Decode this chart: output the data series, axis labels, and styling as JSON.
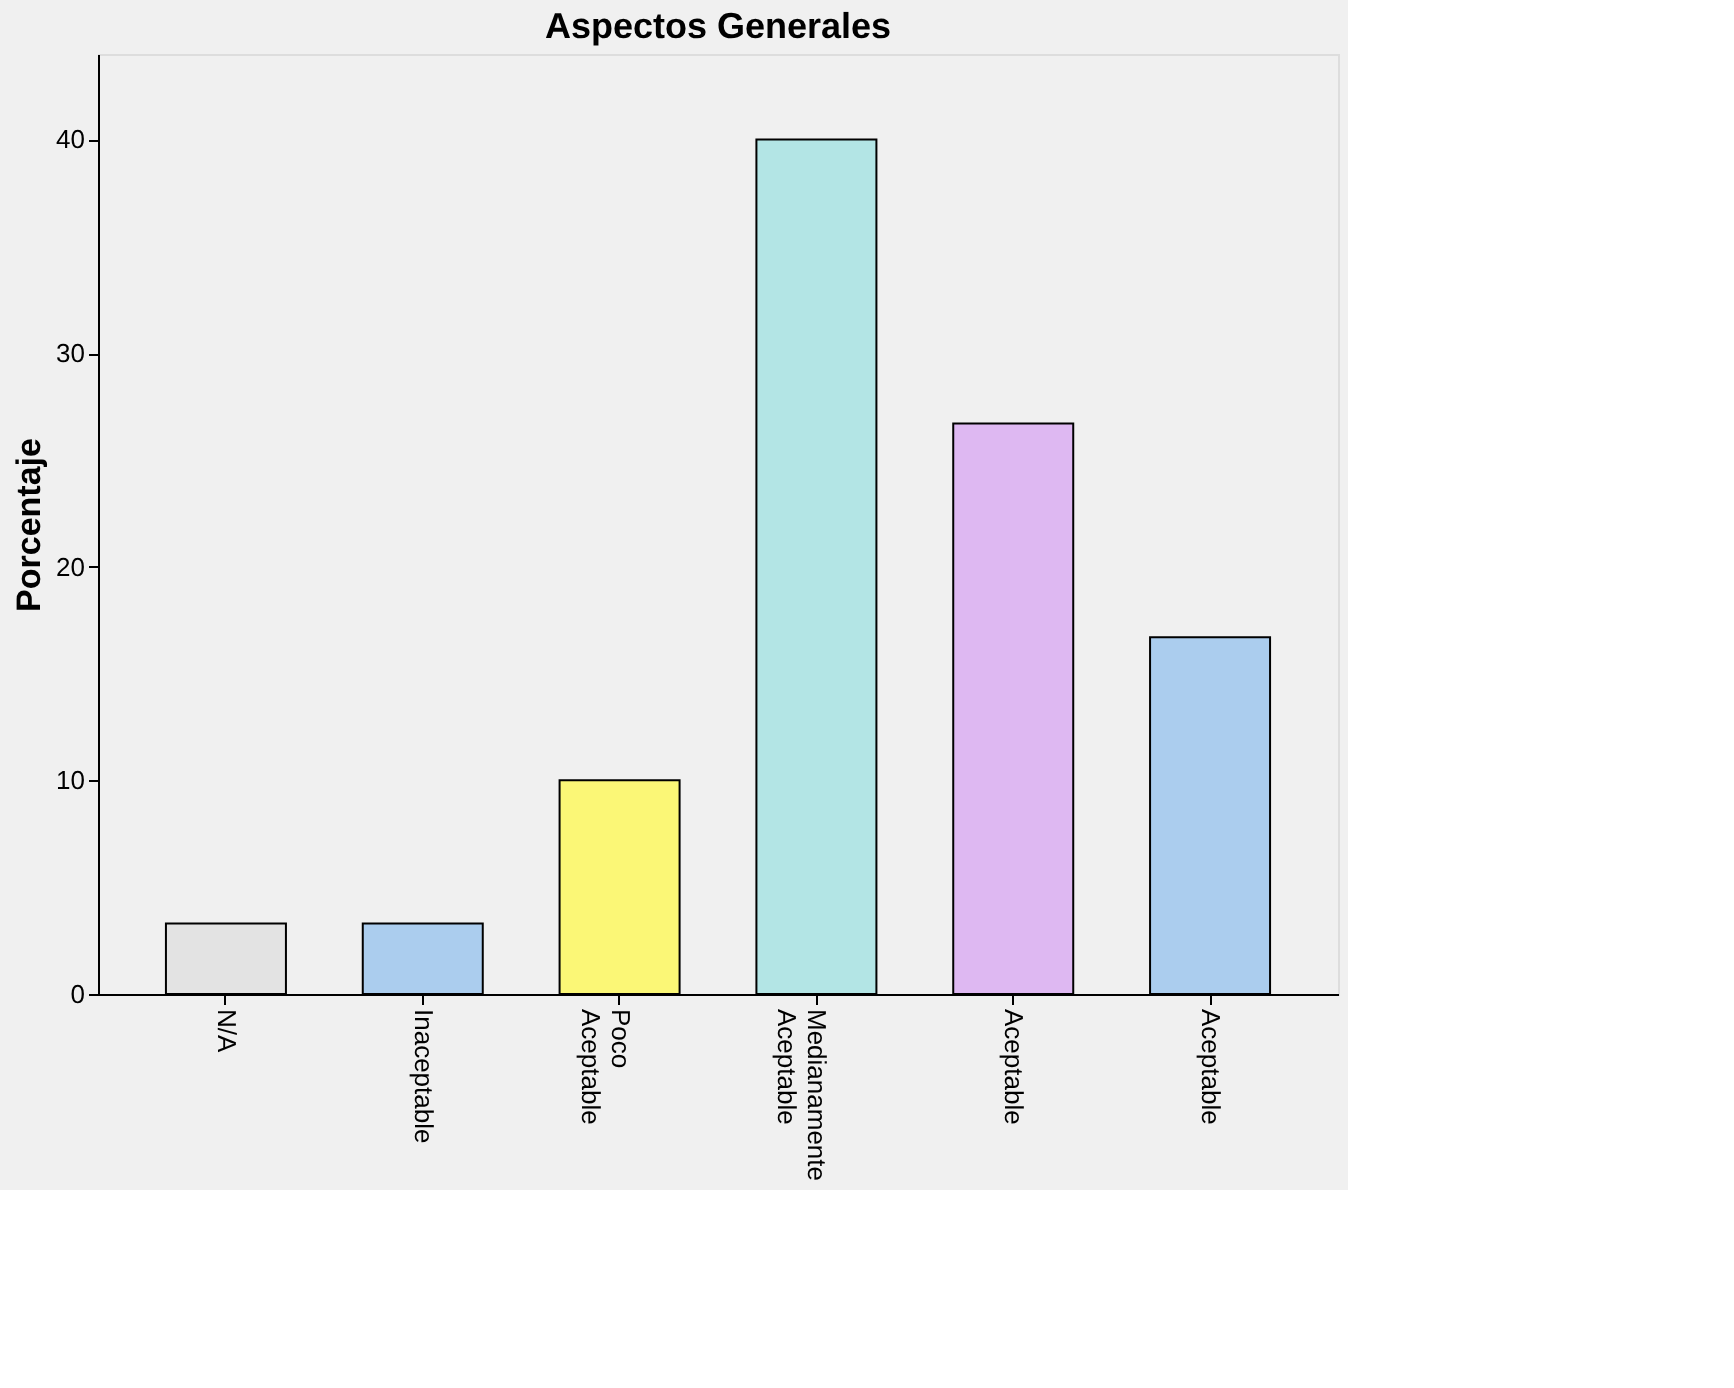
{
  "chart_data": {
    "type": "bar",
    "title": "Aspectos Generales",
    "ylabel": "Porcentaje",
    "categories": [
      "N/A",
      "Inaceptable",
      "Poco Aceptable",
      "Medianamente Aceptable",
      "Aceptable",
      "Aceptable"
    ],
    "values": [
      3.3,
      3.3,
      10,
      40,
      26.7,
      16.7
    ],
    "colors": [
      "#e3e3e3",
      "#abcdee",
      "#fbf776",
      "#b3e5e5",
      "#deb8f2",
      "#abcdee"
    ],
    "ylim": [
      0,
      44
    ],
    "yticks": [
      0,
      10,
      20,
      30,
      40
    ],
    "grid": false
  }
}
